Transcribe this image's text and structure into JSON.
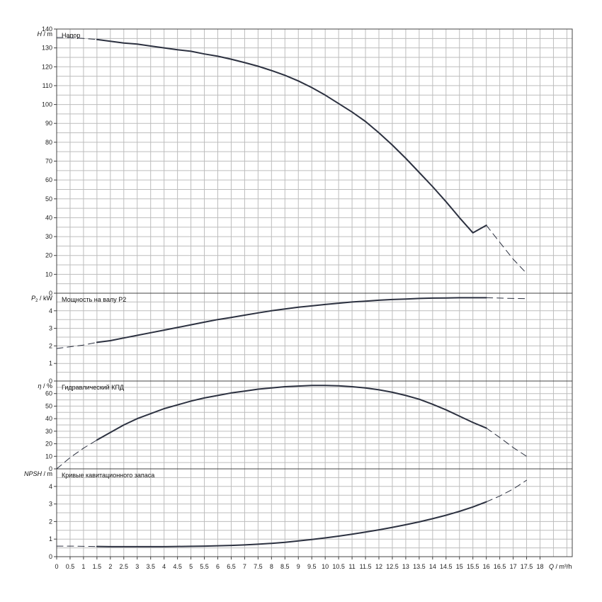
{
  "x_axis": {
    "label_symbol": "Q",
    "label_unit": "m³/h",
    "ticks": [
      "0",
      "0.5",
      "1",
      "1.5",
      "2",
      "2.5",
      "3",
      "3.5",
      "4",
      "4.5",
      "5",
      "5.5",
      "6",
      "6.5",
      "7",
      "7.5",
      "8",
      "8.5",
      "9",
      "9.5",
      "10",
      "10.5",
      "11",
      "11.5",
      "12",
      "12.5",
      "13",
      "13.5",
      "14",
      "14.5",
      "15",
      "15.5",
      "16",
      "16.5",
      "17",
      "17.5",
      "18"
    ]
  },
  "chart_data": [
    {
      "type": "line",
      "title": "Напор",
      "ylabel_symbol": "H",
      "ylabel_unit": "m",
      "ylim": [
        0,
        140
      ],
      "yticks": [
        0,
        10,
        20,
        30,
        40,
        50,
        60,
        70,
        80,
        90,
        100,
        110,
        120,
        130,
        140
      ],
      "grid": true,
      "series": [
        {
          "style": "solid",
          "x": [
            1.5,
            2,
            2.5,
            3,
            3.5,
            4,
            4.5,
            5,
            5.5,
            6,
            6.5,
            7,
            7.5,
            8,
            8.5,
            9,
            9.5,
            10,
            10.5,
            11,
            11.5,
            12,
            12.5,
            13,
            13.5,
            14,
            14.5,
            15,
            15.5,
            16
          ],
          "y": [
            134.5,
            133.5,
            132.6,
            132,
            131,
            130,
            129,
            128.2,
            126.8,
            125.6,
            124,
            122.2,
            120.3,
            118,
            115.5,
            112.5,
            109,
            105,
            100.5,
            96,
            91,
            85,
            78.5,
            71.5,
            64,
            56.5,
            48.5,
            40,
            32,
            36
          ]
        },
        {
          "style": "dashed",
          "x": [
            0,
            0.5,
            1,
            1.5
          ],
          "y": [
            135.5,
            135.5,
            135,
            134.5
          ]
        },
        {
          "style": "dashed",
          "x": [
            16,
            16.5,
            17,
            17.5
          ],
          "y": [
            36,
            27,
            18,
            10.5
          ]
        }
      ]
    },
    {
      "type": "line",
      "title": "Мощность на валу P2",
      "ylabel_symbol": "P",
      "ylabel_sub": "2",
      "ylabel_unit": "kW",
      "ylim": [
        0,
        5
      ],
      "yticks": [
        0,
        1,
        2,
        3,
        4
      ],
      "grid": true,
      "series": [
        {
          "style": "solid",
          "x": [
            1.5,
            2,
            2.5,
            3,
            3.5,
            4,
            4.5,
            5,
            5.5,
            6,
            6.5,
            7,
            7.5,
            8,
            8.5,
            9,
            9.5,
            10,
            10.5,
            11,
            11.5,
            12,
            12.5,
            13,
            13.5,
            14,
            14.5,
            15,
            15.5,
            16
          ],
          "y": [
            2.2,
            2.3,
            2.45,
            2.6,
            2.75,
            2.9,
            3.05,
            3.2,
            3.35,
            3.5,
            3.62,
            3.75,
            3.88,
            4.0,
            4.1,
            4.2,
            4.28,
            4.36,
            4.43,
            4.5,
            4.55,
            4.6,
            4.64,
            4.67,
            4.7,
            4.72,
            4.73,
            4.74,
            4.74,
            4.74
          ]
        },
        {
          "style": "dashed",
          "x": [
            0,
            0.5,
            1,
            1.5
          ],
          "y": [
            1.85,
            1.95,
            2.05,
            2.2
          ]
        },
        {
          "style": "dashed",
          "x": [
            16,
            16.5,
            17,
            17.5
          ],
          "y": [
            4.74,
            4.72,
            4.7,
            4.69
          ]
        }
      ]
    },
    {
      "type": "line",
      "title": "Гидравлический КПД",
      "ylabel_symbol": "η",
      "ylabel_unit": "%",
      "ylim": [
        0,
        70
      ],
      "yticks": [
        0,
        10,
        20,
        30,
        40,
        50,
        60
      ],
      "grid": true,
      "series": [
        {
          "style": "solid",
          "x": [
            1.5,
            2,
            2.5,
            3,
            3.5,
            4,
            4.5,
            5,
            5.5,
            6,
            6.5,
            7,
            7.5,
            8,
            8.5,
            9,
            9.5,
            10,
            10.5,
            11,
            11.5,
            12,
            12.5,
            13,
            13.5,
            14,
            14.5,
            15,
            15.5,
            16
          ],
          "y": [
            23,
            29,
            35,
            40,
            44,
            48,
            51,
            54,
            56.5,
            58.5,
            60.5,
            62,
            63.5,
            64.5,
            65.5,
            66,
            66.5,
            66.5,
            66.2,
            65.5,
            64.5,
            63,
            61,
            58.5,
            55.5,
            51.5,
            47,
            42,
            37,
            32.5
          ]
        },
        {
          "style": "dashed",
          "x": [
            0,
            0.5,
            1,
            1.5
          ],
          "y": [
            0,
            9,
            16.5,
            23
          ]
        },
        {
          "style": "dashed",
          "x": [
            16,
            16.5,
            17,
            17.5
          ],
          "y": [
            32.5,
            25,
            17,
            10
          ]
        }
      ]
    },
    {
      "type": "line",
      "title": "Кривые кавитационного запаса",
      "ylabel_symbol": "NPSH",
      "ylabel_unit": "m",
      "ylim": [
        0,
        5
      ],
      "yticks": [
        0,
        1,
        2,
        3,
        4
      ],
      "grid": true,
      "series": [
        {
          "style": "solid",
          "x": [
            1.5,
            2,
            2.5,
            3,
            3.5,
            4,
            4.5,
            5,
            5.5,
            6,
            6.5,
            7,
            7.5,
            8,
            8.5,
            9,
            9.5,
            10,
            10.5,
            11,
            11.5,
            12,
            12.5,
            13,
            13.5,
            14,
            14.5,
            15,
            15.5,
            16
          ],
          "y": [
            0.58,
            0.57,
            0.57,
            0.57,
            0.57,
            0.57,
            0.58,
            0.59,
            0.6,
            0.62,
            0.64,
            0.67,
            0.71,
            0.76,
            0.82,
            0.9,
            0.98,
            1.07,
            1.17,
            1.28,
            1.4,
            1.53,
            1.67,
            1.82,
            1.98,
            2.16,
            2.36,
            2.58,
            2.83,
            3.12
          ]
        },
        {
          "style": "dashed",
          "x": [
            0,
            0.5,
            1,
            1.5
          ],
          "y": [
            0.6,
            0.6,
            0.59,
            0.58
          ]
        },
        {
          "style": "dashed",
          "x": [
            16,
            16.5,
            17,
            17.5
          ],
          "y": [
            3.12,
            3.45,
            3.85,
            4.35
          ]
        }
      ]
    }
  ]
}
